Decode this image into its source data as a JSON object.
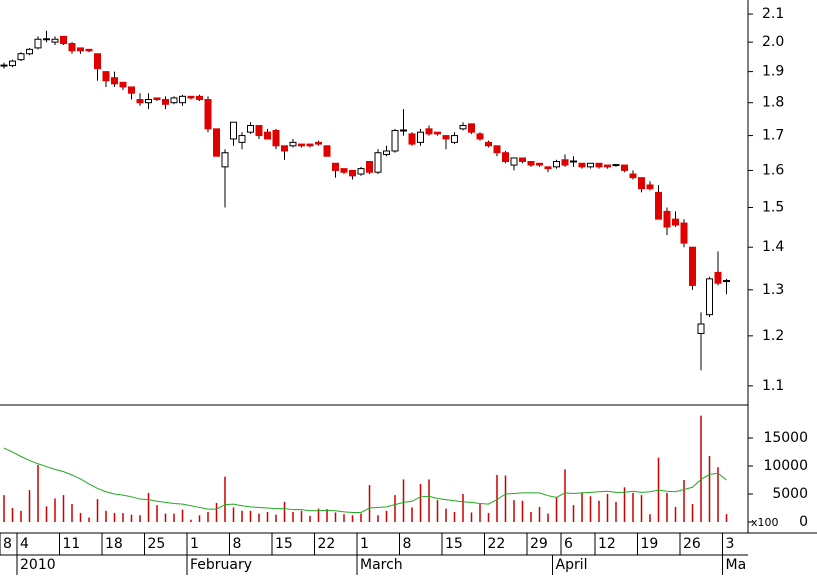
{
  "chart_data": [
    {
      "type": "candlestick",
      "categories": [
        "8",
        null,
        "4",
        null,
        null,
        null,
        null,
        "11",
        null,
        null,
        null,
        null,
        "18",
        null,
        null,
        null,
        null,
        "25",
        null,
        null,
        null,
        null,
        "1",
        null,
        null,
        null,
        null,
        "8",
        null,
        null,
        null,
        null,
        "15",
        null,
        null,
        null,
        null,
        "22",
        null,
        null,
        null,
        null,
        "1",
        null,
        null,
        null,
        null,
        "8",
        null,
        null,
        null,
        null,
        "15",
        null,
        null,
        null,
        null,
        "22",
        null,
        null,
        null,
        null,
        "29",
        null,
        null,
        null,
        "6",
        null,
        null,
        null,
        "12",
        null,
        null,
        null,
        null,
        "19",
        null,
        null,
        null,
        null,
        "26",
        null,
        null,
        null,
        null,
        "3"
      ],
      "category_groups": [
        null,
        null,
        "2010",
        null,
        null,
        null,
        null,
        null,
        null,
        null,
        null,
        null,
        null,
        null,
        null,
        null,
        null,
        null,
        null,
        null,
        null,
        null,
        "February",
        null,
        null,
        null,
        null,
        null,
        null,
        null,
        null,
        null,
        null,
        null,
        null,
        null,
        null,
        null,
        null,
        null,
        null,
        null,
        "March",
        null,
        null,
        null,
        null,
        null,
        null,
        null,
        null,
        null,
        null,
        null,
        null,
        null,
        null,
        null,
        null,
        null,
        null,
        null,
        null,
        null,
        null,
        "April",
        null,
        null,
        null,
        null,
        null,
        null,
        null,
        null,
        null,
        null,
        null,
        null,
        null,
        null,
        null,
        null,
        null,
        null,
        null,
        "Ma"
      ],
      "open": [
        1.92,
        1.92,
        1.94,
        1.96,
        1.98,
        2.01,
        2.0,
        2.02,
        1.995,
        1.98,
        1.975,
        1.96,
        1.9,
        1.88,
        1.865,
        1.85,
        1.81,
        1.8,
        1.815,
        1.81,
        1.8,
        1.8,
        1.82,
        1.82,
        1.81,
        1.72,
        1.61,
        1.69,
        1.68,
        1.71,
        1.73,
        1.71,
        1.715,
        1.67,
        1.67,
        1.675,
        1.675,
        1.68,
        1.67,
        1.62,
        1.605,
        1.6,
        1.59,
        1.625,
        1.595,
        1.645,
        1.655,
        1.715,
        1.705,
        1.68,
        1.72,
        1.71,
        1.7,
        1.68,
        1.72,
        1.735,
        1.705,
        1.68,
        1.67,
        1.65,
        1.615,
        1.635,
        1.625,
        1.62,
        1.61,
        1.61,
        1.63,
        1.625,
        1.62,
        1.61,
        1.62,
        1.615,
        1.615,
        1.615,
        1.59,
        1.58,
        1.56,
        1.54,
        1.49,
        1.47,
        1.46,
        1.4,
        1.205,
        1.245,
        1.34,
        1.32
      ],
      "high": [
        1.93,
        1.94,
        1.965,
        1.98,
        2.02,
        2.04,
        2.02,
        2.02,
        2.0,
        1.98,
        1.975,
        1.96,
        1.9,
        1.9,
        1.865,
        1.85,
        1.83,
        1.83,
        1.815,
        1.82,
        1.82,
        1.825,
        1.82,
        1.825,
        1.82,
        1.72,
        1.66,
        1.74,
        1.71,
        1.74,
        1.73,
        1.72,
        1.72,
        1.67,
        1.69,
        1.675,
        1.675,
        1.685,
        1.67,
        1.62,
        1.605,
        1.6,
        1.61,
        1.625,
        1.66,
        1.67,
        1.72,
        1.78,
        1.71,
        1.72,
        1.73,
        1.71,
        1.7,
        1.71,
        1.74,
        1.735,
        1.71,
        1.685,
        1.67,
        1.655,
        1.635,
        1.635,
        1.625,
        1.62,
        1.61,
        1.63,
        1.645,
        1.64,
        1.62,
        1.62,
        1.62,
        1.615,
        1.615,
        1.615,
        1.6,
        1.58,
        1.57,
        1.56,
        1.5,
        1.49,
        1.47,
        1.4,
        1.25,
        1.33,
        1.39,
        1.325
      ],
      "low": [
        1.91,
        1.915,
        1.935,
        1.955,
        1.975,
        2.0,
        1.99,
        1.99,
        1.96,
        1.96,
        1.965,
        1.87,
        1.85,
        1.85,
        1.84,
        1.81,
        1.79,
        1.78,
        1.805,
        1.78,
        1.795,
        1.79,
        1.81,
        1.805,
        1.71,
        1.64,
        1.5,
        1.67,
        1.66,
        1.705,
        1.69,
        1.69,
        1.66,
        1.63,
        1.665,
        1.665,
        1.665,
        1.67,
        1.64,
        1.58,
        1.59,
        1.575,
        1.585,
        1.59,
        1.59,
        1.64,
        1.65,
        1.7,
        1.67,
        1.67,
        1.7,
        1.7,
        1.66,
        1.675,
        1.715,
        1.705,
        1.685,
        1.665,
        1.64,
        1.62,
        1.6,
        1.62,
        1.61,
        1.61,
        1.595,
        1.605,
        1.61,
        1.61,
        1.605,
        1.605,
        1.605,
        1.605,
        1.61,
        1.595,
        1.575,
        1.54,
        1.545,
        1.47,
        1.43,
        1.45,
        1.4,
        1.3,
        1.13,
        1.24,
        1.31,
        1.29
      ],
      "close": [
        1.92,
        1.935,
        1.96,
        1.975,
        2.01,
        2.01,
        2.01,
        1.995,
        1.97,
        1.97,
        1.97,
        1.91,
        1.87,
        1.86,
        1.85,
        1.83,
        1.8,
        1.81,
        1.81,
        1.795,
        1.815,
        1.82,
        1.815,
        1.81,
        1.72,
        1.64,
        1.65,
        1.74,
        1.7,
        1.73,
        1.7,
        1.69,
        1.67,
        1.655,
        1.68,
        1.67,
        1.67,
        1.675,
        1.64,
        1.6,
        1.595,
        1.585,
        1.605,
        1.595,
        1.65,
        1.655,
        1.715,
        1.715,
        1.675,
        1.71,
        1.705,
        1.705,
        1.69,
        1.7,
        1.73,
        1.71,
        1.69,
        1.67,
        1.65,
        1.625,
        1.635,
        1.625,
        1.615,
        1.615,
        1.605,
        1.625,
        1.615,
        1.625,
        1.61,
        1.62,
        1.61,
        1.61,
        1.615,
        1.6,
        1.58,
        1.55,
        1.55,
        1.47,
        1.45,
        1.455,
        1.41,
        1.31,
        1.225,
        1.325,
        1.315,
        1.32
      ],
      "ylim": [
        1.064,
        2.152
      ],
      "yticks": [
        1.1,
        1.2,
        1.3,
        1.4,
        1.5,
        1.6,
        1.7,
        1.8,
        1.9,
        {
          "value": 2,
          "label": "2.0"
        },
        2.1
      ],
      "log_scale": true,
      "up_color": "#ffffff",
      "down_color": "#e00000",
      "outline_color": "#000000"
    },
    {
      "type": "bar",
      "series": [
        {
          "color": "#cc0000",
          "values": [
            4800,
            2500,
            2000,
            5700,
            10200,
            2800,
            4200,
            4800,
            3200,
            1600,
            800,
            4100,
            2000,
            1600,
            1600,
            1300,
            1200,
            5200,
            3000,
            1500,
            1500,
            2200,
            400,
            1200,
            1800,
            3400,
            8100,
            2600,
            2000,
            2000,
            1500,
            1800,
            1300,
            3600,
            1800,
            2000,
            1100,
            2400,
            2300,
            1700,
            1400,
            1200,
            1500,
            6600,
            1200,
            2000,
            4800,
            7600,
            2600,
            6800,
            7600,
            3900,
            2400,
            1800,
            5000,
            1700,
            3200,
            1600,
            8400,
            8300,
            3900,
            3800,
            1800,
            2700,
            1500,
            4400,
            9400,
            3000,
            5300,
            4600,
            3800,
            5000,
            3600,
            6200,
            5200,
            4800,
            1400,
            11500,
            5200,
            2700,
            7500,
            3200,
            19000,
            11800,
            9800,
            1400
          ]
        },
        {
          "type": "line",
          "color": "#22aa22",
          "values": [
            13200,
            12500,
            11700,
            11000,
            10400,
            9900,
            9400,
            9000,
            8400,
            7700,
            6800,
            6000,
            5400,
            5000,
            4800,
            4500,
            4100,
            4000,
            3700,
            3500,
            3300,
            3200,
            2900,
            2600,
            2300,
            2300,
            3100,
            3200,
            2900,
            2700,
            2600,
            2500,
            2400,
            2400,
            2200,
            2200,
            2000,
            2000,
            2100,
            2000,
            1800,
            1700,
            1700,
            2500,
            2600,
            2700,
            3100,
            3500,
            3700,
            4500,
            4600,
            4200,
            4000,
            3800,
            3600,
            3500,
            3300,
            3200,
            4000,
            5000,
            5100,
            5200,
            5200,
            5200,
            4700,
            4400,
            5200,
            5100,
            5200,
            5300,
            5400,
            5500,
            5300,
            5300,
            5500,
            5300,
            5400,
            5700,
            5500,
            5400,
            5800,
            6200,
            7600,
            8500,
            8700,
            7500
          ]
        }
      ],
      "ylim": [
        0,
        20900
      ],
      "yticks": [
        0,
        5000,
        10000,
        15000
      ],
      "unit_label": "x100"
    }
  ]
}
